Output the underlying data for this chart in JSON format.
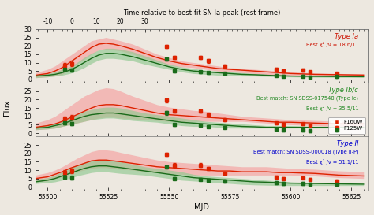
{
  "title_top": "Time relative to best-fit SN Ia peak (rest frame)",
  "xlabel": "MJD",
  "ylabel": "Flux",
  "mjd_range": [
    55495,
    55632
  ],
  "mjd_peak": 55510,
  "top_x_ticks": [
    -10,
    0,
    10,
    20,
    30
  ],
  "mjd_ticks": [
    55500,
    55525,
    55550,
    55575,
    55600,
    55625
  ],
  "panels": [
    {
      "label_type": "Type Ia",
      "label_chi": "Best χ² /ν = 18.6/11",
      "label_color": "#cc1100",
      "label_match": null,
      "ylim": [
        -2,
        30
      ],
      "yticks": [
        0,
        5,
        10,
        15,
        20,
        25,
        30
      ],
      "red_curve_x": [
        55495,
        55500,
        55503,
        55506,
        55509,
        55512,
        55515,
        55518,
        55521,
        55524,
        55527,
        55530,
        55535,
        55540,
        55545,
        55550,
        55555,
        55560,
        55565,
        55570,
        55575,
        55580,
        55585,
        55590,
        55595,
        55600,
        55610,
        55620,
        55630
      ],
      "red_curve_y": [
        2.5,
        3.5,
        5,
        7,
        10,
        13,
        16,
        19,
        21,
        21.5,
        21,
        20,
        18,
        15.5,
        13,
        11,
        9.5,
        8.5,
        7.5,
        6.5,
        6,
        5.5,
        5,
        4.5,
        4,
        3.5,
        3,
        2.8,
        2.6
      ],
      "red_band_upper": [
        4,
        6,
        8,
        11,
        14,
        17,
        20,
        23,
        24,
        25,
        24,
        23,
        21,
        18,
        15,
        13,
        11,
        10,
        9,
        8,
        7,
        6.5,
        6,
        5.5,
        5,
        4.5,
        3.8,
        3.5,
        3.2
      ],
      "red_band_lower": [
        1,
        1.5,
        2,
        3,
        6,
        9,
        12,
        15,
        17.5,
        18,
        17.5,
        17,
        15,
        12.5,
        10.5,
        8.5,
        7.5,
        7,
        6,
        5,
        4.5,
        4,
        3.5,
        3,
        2.5,
        2.2,
        2,
        1.8,
        1.8
      ],
      "green_curve_x": [
        55495,
        55500,
        55503,
        55506,
        55509,
        55512,
        55515,
        55518,
        55521,
        55524,
        55527,
        55530,
        55535,
        55540,
        55545,
        55550,
        55555,
        55560,
        55565,
        55570,
        55575,
        55580,
        55585,
        55590,
        55595,
        55600,
        55610,
        55620,
        55630
      ],
      "green_curve_y": [
        2,
        2.5,
        3,
        4,
        5.5,
        7.5,
        10,
        12.5,
        14.5,
        15.5,
        15.5,
        15,
        13.5,
        11.5,
        9.5,
        7.5,
        6,
        5,
        4.5,
        4,
        3.5,
        3,
        2.8,
        2.5,
        2.2,
        2,
        1.8,
        1.7,
        1.6
      ],
      "green_band_upper": [
        3,
        3.5,
        4.5,
        6,
        7.5,
        10,
        13,
        15.5,
        17.5,
        18.5,
        18.5,
        18,
        16.5,
        14,
        11.5,
        9,
        7.5,
        6.5,
        5.5,
        5,
        4.5,
        4,
        3.5,
        3,
        2.8,
        2.5,
        2.2,
        2,
        1.9
      ],
      "green_band_lower": [
        1,
        1.5,
        2,
        2.5,
        3.5,
        5,
        7,
        9.5,
        11.5,
        12.5,
        12.5,
        12,
        11,
        9,
        7.5,
        6,
        4.5,
        3.5,
        3,
        2.5,
        2.5,
        2,
        2,
        1.8,
        1.5,
        1.5,
        1.3,
        1.2,
        1.2
      ],
      "red_data_x": [
        55507,
        55510,
        55549,
        55552,
        55563,
        55566,
        55573,
        55594,
        55597,
        55605,
        55608,
        55619
      ],
      "red_data_y": [
        8.5,
        9.5,
        19.5,
        13,
        13,
        11,
        8,
        6,
        5,
        5.5,
        4.5,
        3.5
      ],
      "red_data_err": [
        1.5,
        1.5,
        1,
        1,
        1,
        1,
        0.8,
        0.8,
        0.8,
        0.8,
        0.8,
        0.8
      ],
      "green_data_x": [
        55507,
        55510,
        55549,
        55552,
        55563,
        55566,
        55573,
        55594,
        55597,
        55605,
        55608,
        55619
      ],
      "green_data_y": [
        6,
        5.5,
        12,
        5,
        4.5,
        4,
        3.5,
        2.5,
        2,
        2,
        1.5,
        1.8
      ],
      "green_data_err": [
        1,
        1,
        1,
        0.8,
        0.8,
        0.8,
        0.8,
        0.8,
        0.8,
        0.8,
        0.8,
        0.8
      ]
    },
    {
      "label_type": "Type Ib/c",
      "label_chi": "Best χ² /ν = 35.5/11",
      "label_color": "#228822",
      "label_match": "Best match: SN SDSS-017548 (Type Ic)",
      "ylim": [
        -2,
        30
      ],
      "yticks": [
        0,
        5,
        10,
        15,
        20,
        25
      ],
      "red_curve_x": [
        55495,
        55500,
        55503,
        55506,
        55509,
        55512,
        55515,
        55518,
        55521,
        55524,
        55527,
        55530,
        55535,
        55540,
        55545,
        55550,
        55555,
        55560,
        55565,
        55570,
        55575,
        55580,
        55585,
        55590,
        55595,
        55600,
        55610,
        55620,
        55630
      ],
      "red_curve_y": [
        3.5,
        4.5,
        5.5,
        7,
        9,
        11,
        13,
        15,
        16.5,
        17,
        17,
        16.5,
        15,
        13.5,
        12,
        11,
        10.5,
        10,
        9.5,
        9,
        8.5,
        8,
        7.5,
        7,
        6.5,
        6.5,
        6,
        5.5,
        5.5
      ],
      "red_band_upper": [
        6,
        8,
        10,
        13,
        16,
        19,
        22,
        24,
        26,
        27,
        26.5,
        25,
        22,
        19.5,
        17,
        15.5,
        14.5,
        13.5,
        13,
        12,
        11,
        10,
        9.5,
        9,
        8.5,
        8,
        7.5,
        7,
        6.5
      ],
      "red_band_lower": [
        2,
        2.5,
        3,
        4,
        5,
        6,
        7,
        8,
        9,
        9.5,
        9.5,
        9,
        8.5,
        8,
        7.5,
        7,
        7,
        7,
        7,
        7,
        7,
        7,
        6.5,
        6,
        5.5,
        5,
        4.5,
        4,
        4
      ],
      "green_curve_x": [
        55495,
        55500,
        55503,
        55506,
        55509,
        55512,
        55515,
        55518,
        55521,
        55524,
        55527,
        55530,
        55535,
        55540,
        55545,
        55550,
        55555,
        55560,
        55565,
        55570,
        55575,
        55580,
        55585,
        55590,
        55595,
        55600,
        55610,
        55620,
        55630
      ],
      "green_curve_y": [
        3,
        3.5,
        4.5,
        5.5,
        7,
        8.5,
        10,
        11,
        11.5,
        12,
        12,
        11.5,
        10.5,
        9.5,
        8.5,
        7.5,
        6.5,
        6,
        5.5,
        5,
        4.5,
        4,
        3.8,
        3.5,
        3.5,
        3.5,
        3.5,
        3.5,
        3.5
      ],
      "green_band_upper": [
        4,
        5,
        6,
        7.5,
        9,
        11,
        13,
        14,
        15,
        15.5,
        15.5,
        15,
        13.5,
        12,
        11,
        10,
        9,
        8,
        7,
        6.5,
        6,
        5.5,
        5,
        4.5,
        4.5,
        4.5,
        4,
        4,
        4
      ],
      "green_band_lower": [
        2,
        2.5,
        3,
        4,
        5,
        6,
        7,
        8,
        8.5,
        9,
        9,
        8.5,
        7.5,
        7,
        6.5,
        5.5,
        4.5,
        4,
        4,
        3.5,
        3,
        3,
        3,
        3,
        3,
        3,
        3,
        3,
        3
      ],
      "red_data_x": [
        55507,
        55510,
        55549,
        55552,
        55563,
        55566,
        55573,
        55594,
        55597,
        55605,
        55608,
        55619
      ],
      "red_data_y": [
        8.5,
        9.5,
        19.5,
        13,
        13,
        11,
        8,
        6,
        5,
        5.5,
        4.5,
        3.5
      ],
      "red_data_err": [
        1.5,
        1.5,
        1,
        1,
        1,
        1,
        0.8,
        0.8,
        0.8,
        0.8,
        0.8,
        0.8
      ],
      "green_data_x": [
        55507,
        55510,
        55549,
        55552,
        55563,
        55566,
        55573,
        55594,
        55597,
        55605,
        55608,
        55619
      ],
      "green_data_y": [
        6,
        5.5,
        12,
        5,
        4.5,
        4,
        3.5,
        2.5,
        2,
        2,
        1.5,
        1.8
      ],
      "green_data_err": [
        1,
        1,
        1,
        0.8,
        0.8,
        0.8,
        0.8,
        0.8,
        0.8,
        0.8,
        0.8,
        0.8
      ]
    },
    {
      "label_type": "Type II",
      "label_chi": "Best χ² /ν = 51.1/11",
      "label_color": "#0000cc",
      "label_match": "Best match: SN SDSS-000018 (Type II-P)",
      "ylim": [
        -2,
        30
      ],
      "yticks": [
        0,
        5,
        10,
        15,
        20,
        25
      ],
      "red_curve_x": [
        55495,
        55500,
        55503,
        55506,
        55509,
        55512,
        55515,
        55518,
        55521,
        55524,
        55527,
        55530,
        55535,
        55540,
        55545,
        55550,
        55555,
        55560,
        55565,
        55570,
        55575,
        55580,
        55585,
        55590,
        55595,
        55600,
        55610,
        55620,
        55630
      ],
      "red_curve_y": [
        5,
        6,
        7.5,
        9,
        11,
        12.5,
        14,
        15.5,
        16,
        16,
        15.5,
        15,
        14,
        13,
        12,
        11.5,
        11,
        10.5,
        10,
        9.5,
        9.5,
        9,
        9,
        9,
        8.5,
        8.5,
        8,
        7,
        6.5
      ],
      "red_band_upper": [
        7,
        8.5,
        10,
        12,
        14.5,
        17,
        19,
        21,
        22,
        22,
        21.5,
        20.5,
        19,
        17.5,
        16,
        15,
        14.5,
        14,
        13.5,
        13,
        12.5,
        12,
        12,
        12,
        11.5,
        11,
        10.5,
        9.5,
        9
      ],
      "red_band_lower": [
        3,
        3.5,
        5,
        6,
        7.5,
        9,
        10,
        11,
        11.5,
        11.5,
        11,
        10.5,
        10,
        9,
        8.5,
        8,
        7.5,
        7,
        7,
        7,
        7,
        7,
        7,
        7,
        7,
        7,
        6.5,
        5.5,
        5
      ],
      "green_curve_x": [
        55495,
        55500,
        55503,
        55506,
        55509,
        55512,
        55515,
        55518,
        55521,
        55524,
        55527,
        55530,
        55535,
        55540,
        55545,
        55550,
        55555,
        55560,
        55565,
        55570,
        55575,
        55580,
        55585,
        55590,
        55595,
        55600,
        55610,
        55620,
        55630
      ],
      "green_curve_y": [
        3,
        4,
        5,
        6.5,
        8,
        9.5,
        11,
        12,
        12.5,
        12.5,
        12,
        11.5,
        10.5,
        9.5,
        8.5,
        7.5,
        6.5,
        5.5,
        5,
        4.5,
        4,
        3.5,
        3,
        2.8,
        2.5,
        2.2,
        2,
        1.8,
        1.6
      ],
      "green_band_upper": [
        4.5,
        5.5,
        7,
        9,
        11,
        13,
        14.5,
        15.5,
        16,
        16,
        15.5,
        15,
        13.5,
        12,
        11,
        10,
        9,
        7.5,
        6.5,
        6,
        5.5,
        5,
        4.5,
        4,
        3.5,
        3,
        2.5,
        2.2,
        2
      ],
      "green_band_lower": [
        2,
        2.5,
        3,
        4,
        5,
        6.5,
        7.5,
        8.5,
        9,
        9,
        8.5,
        8,
        7.5,
        7,
        6,
        5,
        4,
        3.5,
        3,
        2.5,
        2,
        1.5,
        1.2,
        1,
        0.8,
        0.8,
        0.8,
        0.8,
        0.8
      ],
      "red_data_x": [
        55507,
        55510,
        55549,
        55552,
        55563,
        55566,
        55573,
        55594,
        55597,
        55605,
        55608,
        55619
      ],
      "red_data_y": [
        8.5,
        9.5,
        19.5,
        13,
        13,
        11,
        8,
        6,
        5,
        5.5,
        4.5,
        3.5
      ],
      "red_data_err": [
        1.5,
        1.5,
        1,
        1,
        1,
        1,
        0.8,
        0.8,
        0.8,
        0.8,
        0.8,
        0.8
      ],
      "green_data_x": [
        55507,
        55510,
        55549,
        55552,
        55563,
        55566,
        55573,
        55594,
        55597,
        55605,
        55608,
        55619
      ],
      "green_data_y": [
        6,
        5.5,
        12,
        5,
        4.5,
        4,
        3.5,
        2.5,
        2,
        2,
        1.5,
        1.8
      ],
      "green_data_err": [
        1,
        1,
        1,
        0.8,
        0.8,
        0.8,
        0.8,
        0.8,
        0.8,
        0.8,
        0.8,
        0.8
      ]
    }
  ],
  "red_color": "#dd2200",
  "green_color": "#1a6b1a",
  "red_fill": "#f5a0a0",
  "green_fill": "#90c990",
  "bg_color": "#ede8e0",
  "legend_panel": 1,
  "legend_items": [
    "F160W",
    "F125W"
  ]
}
